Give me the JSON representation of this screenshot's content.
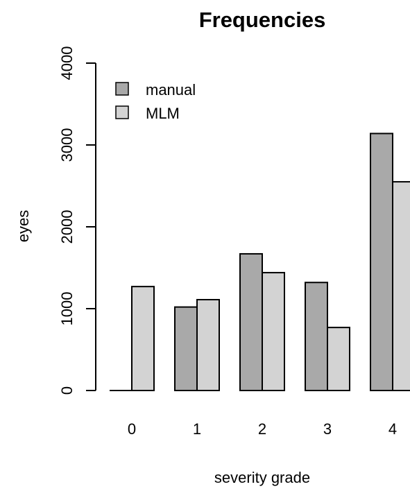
{
  "chart_data": {
    "type": "bar",
    "title": "Frequencies",
    "xlabel": "severity grade",
    "ylabel": "eyes",
    "categories": [
      "0",
      "1",
      "2",
      "3",
      "4"
    ],
    "series": [
      {
        "name": "manual",
        "values": [
          0,
          1020,
          1670,
          1320,
          3140
        ],
        "color": "#a9a9a9"
      },
      {
        "name": "MLM",
        "values": [
          1270,
          1110,
          1440,
          770,
          2550
        ],
        "color": "#d3d3d3"
      }
    ],
    "ylim": [
      0,
      4000
    ],
    "yticks": [
      "0",
      "1000",
      "2000",
      "3000",
      "4000"
    ],
    "grid": false,
    "legend_position": "top-left"
  }
}
